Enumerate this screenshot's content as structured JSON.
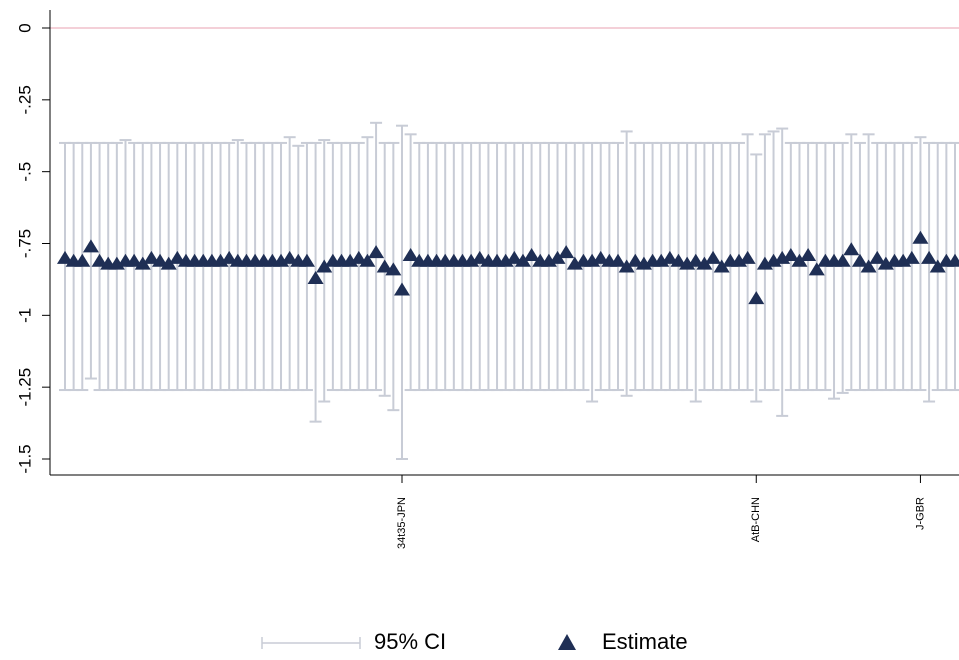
{
  "chart_data": {
    "type": "ci-dot",
    "categories": [
      null,
      null,
      null,
      null,
      null,
      null,
      null,
      null,
      null,
      null,
      null,
      null,
      null,
      null,
      null,
      null,
      null,
      null,
      null,
      null,
      null,
      null,
      null,
      null,
      null,
      null,
      null,
      null,
      null,
      null,
      null,
      null,
      null,
      null,
      null,
      null,
      null,
      null,
      null,
      "34t35-JPN",
      null,
      null,
      null,
      null,
      null,
      null,
      null,
      null,
      null,
      null,
      null,
      null,
      null,
      null,
      null,
      null,
      null,
      null,
      null,
      null,
      null,
      null,
      null,
      null,
      null,
      null,
      null,
      null,
      null,
      null,
      null,
      null,
      null,
      null,
      null,
      null,
      null,
      null,
      null,
      null,
      "AtB-CHN",
      null,
      null,
      null,
      null,
      null,
      null,
      null,
      null,
      null,
      null,
      null,
      null,
      null,
      null,
      null,
      null,
      null,
      null,
      "J-GBR",
      null,
      null,
      null,
      null
    ],
    "series": [
      {
        "name": "95% CI",
        "color": "#c8ccd6",
        "low": [
          -1.26,
          -1.26,
          -1.26,
          -1.22,
          -1.26,
          -1.26,
          -1.26,
          -1.26,
          -1.26,
          -1.26,
          -1.26,
          -1.26,
          -1.26,
          -1.26,
          -1.26,
          -1.26,
          -1.26,
          -1.26,
          -1.26,
          -1.26,
          -1.26,
          -1.26,
          -1.26,
          -1.26,
          -1.26,
          -1.26,
          -1.26,
          -1.26,
          -1.26,
          -1.37,
          -1.3,
          -1.26,
          -1.26,
          -1.26,
          -1.26,
          -1.26,
          -1.26,
          -1.28,
          -1.33,
          -1.5,
          -1.26,
          -1.26,
          -1.26,
          -1.26,
          -1.26,
          -1.26,
          -1.26,
          -1.26,
          -1.26,
          -1.26,
          -1.26,
          -1.26,
          -1.26,
          -1.26,
          -1.26,
          -1.26,
          -1.26,
          -1.26,
          -1.26,
          -1.26,
          -1.26,
          -1.3,
          -1.26,
          -1.26,
          -1.26,
          -1.28,
          -1.26,
          -1.26,
          -1.26,
          -1.26,
          -1.26,
          -1.26,
          -1.26,
          -1.3,
          -1.26,
          -1.26,
          -1.26,
          -1.26,
          -1.26,
          -1.26,
          -1.3,
          -1.26,
          -1.26,
          -1.35,
          -1.26,
          -1.26,
          -1.26,
          -1.26,
          -1.26,
          -1.29,
          -1.27,
          -1.26,
          -1.26,
          -1.26,
          -1.26,
          -1.26,
          -1.26,
          -1.26,
          -1.26,
          -1.26,
          -1.3,
          -1.26,
          -1.26,
          -1.26
        ],
        "high": [
          -0.4,
          -0.4,
          -0.4,
          -0.4,
          -0.4,
          -0.4,
          -0.4,
          -0.39,
          -0.4,
          -0.4,
          -0.4,
          -0.4,
          -0.4,
          -0.4,
          -0.4,
          -0.4,
          -0.4,
          -0.4,
          -0.4,
          -0.4,
          -0.39,
          -0.4,
          -0.4,
          -0.4,
          -0.4,
          -0.4,
          -0.38,
          -0.41,
          -0.4,
          -0.4,
          -0.39,
          -0.4,
          -0.4,
          -0.4,
          -0.4,
          -0.38,
          -0.33,
          -0.4,
          -0.4,
          -0.34,
          -0.37,
          -0.4,
          -0.4,
          -0.4,
          -0.4,
          -0.4,
          -0.4,
          -0.4,
          -0.4,
          -0.4,
          -0.4,
          -0.4,
          -0.4,
          -0.4,
          -0.4,
          -0.4,
          -0.4,
          -0.4,
          -0.4,
          -0.4,
          -0.4,
          -0.4,
          -0.4,
          -0.4,
          -0.4,
          -0.36,
          -0.4,
          -0.4,
          -0.4,
          -0.4,
          -0.4,
          -0.4,
          -0.4,
          -0.4,
          -0.4,
          -0.4,
          -0.4,
          -0.4,
          -0.4,
          -0.37,
          -0.44,
          -0.37,
          -0.36,
          -0.35,
          -0.4,
          -0.4,
          -0.4,
          -0.4,
          -0.4,
          -0.4,
          -0.4,
          -0.37,
          -0.4,
          -0.37,
          -0.4,
          -0.4,
          -0.4,
          -0.4,
          -0.4,
          -0.38,
          -0.4,
          -0.4,
          -0.4,
          -0.4
        ]
      },
      {
        "name": "Estimate",
        "color": "#1f2f55",
        "values": [
          -0.8,
          -0.81,
          -0.81,
          -0.76,
          -0.81,
          -0.82,
          -0.82,
          -0.81,
          -0.81,
          -0.82,
          -0.8,
          -0.81,
          -0.82,
          -0.8,
          -0.81,
          -0.81,
          -0.81,
          -0.81,
          -0.81,
          -0.8,
          -0.81,
          -0.81,
          -0.81,
          -0.81,
          -0.81,
          -0.81,
          -0.8,
          -0.81,
          -0.81,
          -0.87,
          -0.83,
          -0.81,
          -0.81,
          -0.81,
          -0.8,
          -0.81,
          -0.78,
          -0.83,
          -0.84,
          -0.91,
          -0.79,
          -0.81,
          -0.81,
          -0.81,
          -0.81,
          -0.81,
          -0.81,
          -0.81,
          -0.8,
          -0.81,
          -0.81,
          -0.81,
          -0.8,
          -0.81,
          -0.79,
          -0.81,
          -0.81,
          -0.8,
          -0.78,
          -0.82,
          -0.81,
          -0.81,
          -0.8,
          -0.81,
          -0.81,
          -0.83,
          -0.81,
          -0.82,
          -0.81,
          -0.81,
          -0.8,
          -0.81,
          -0.82,
          -0.81,
          -0.82,
          -0.8,
          -0.83,
          -0.81,
          -0.81,
          -0.8,
          -0.94,
          -0.82,
          -0.81,
          -0.8,
          -0.79,
          -0.81,
          -0.79,
          -0.84,
          -0.81,
          -0.81,
          -0.81,
          -0.77,
          -0.81,
          -0.83,
          -0.8,
          -0.82,
          -0.81,
          -0.81,
          -0.8,
          -0.73,
          -0.8,
          -0.83,
          -0.81,
          -0.81
        ]
      }
    ],
    "reference_line": 0,
    "reference_color": "#e8a0b0",
    "ylim": [
      -1.5,
      0
    ],
    "yticks": [
      0,
      {
        "value": -0.25,
        "label": "-.25"
      },
      {
        "value": -0.5,
        "label": "-.5"
      },
      {
        "value": -0.75,
        "label": "-.75"
      },
      -1,
      -1.25,
      -1.5
    ],
    "legend": "bottom"
  }
}
